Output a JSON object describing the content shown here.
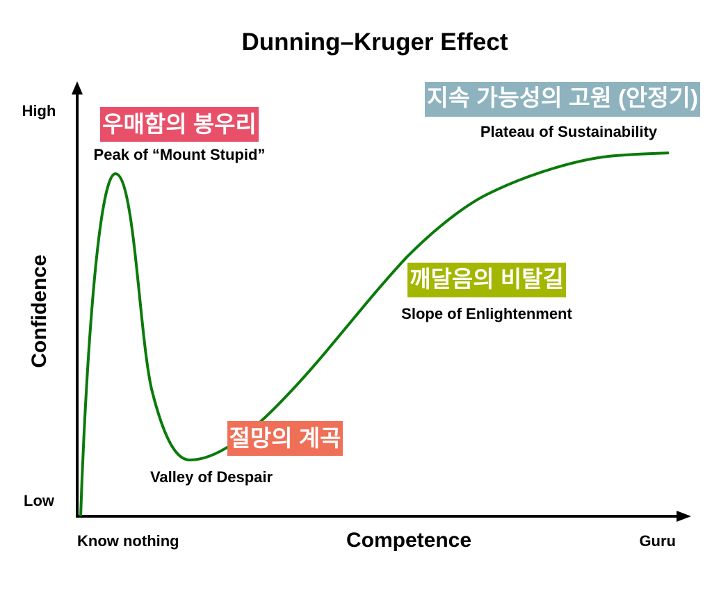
{
  "title": "Dunning–Kruger Effect",
  "axes": {
    "y_title": "Confidence",
    "x_title": "Competence",
    "y_high": "High",
    "y_low": "Low",
    "x_start": "Know nothing",
    "x_end": "Guru"
  },
  "phases": {
    "peak": {
      "ko": "우매함의 봉우리",
      "en": "Peak of “Mount Stupid”",
      "color": "#e8506a"
    },
    "valley": {
      "ko": "절망의 계곡",
      "en": "Valley of Despair",
      "color": "#ef6f57"
    },
    "slope": {
      "ko": "깨달음의 비탈길",
      "en": "Slope of Enlightenment",
      "color": "#a3b700"
    },
    "plateau": {
      "ko": "지속 가능성의 고원 (안정기)",
      "en": "Plateau of Sustainability",
      "color": "#8eb3bf"
    }
  },
  "curve_color": "#0a7a0a",
  "axis_color": "#000000"
}
